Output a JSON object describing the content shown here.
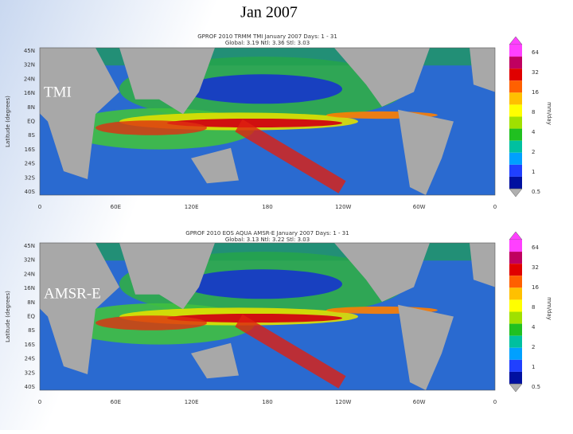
{
  "title": "Jan 2007",
  "panels": [
    {
      "label": "TMI",
      "header": [
        "GPROF 2010   TRMM   TMI   January 2007   Days: 1 - 31",
        "Global: 3.19   Ntl: 3.36   Stl: 3.03"
      ],
      "y_axis_label": "Latitude (degrees)",
      "yticks": [
        "45N",
        "32N",
        "24N",
        "16N",
        "8N",
        "EQ",
        "8S",
        "16S",
        "24S",
        "32S",
        "40S"
      ],
      "xticks": [
        "0",
        "60E",
        "120E",
        "180",
        "120W",
        "60W",
        "0"
      ],
      "colorbar_label": "mm/day",
      "colorbar_ticks": [
        "64",
        "32",
        "16",
        "8",
        "4",
        "2",
        "1",
        "0.5"
      ]
    },
    {
      "label": "AMSR-E",
      "header": [
        "GPROF 2010   EOS AQUA   AMSR-E   January 2007   Days: 1 - 31",
        "Global: 3.13   Ntl: 3.22   Stl: 3.03"
      ],
      "y_axis_label": "Latitude (degrees)",
      "yticks": [
        "45N",
        "32N",
        "24N",
        "16N",
        "8N",
        "EQ",
        "8S",
        "16S",
        "24S",
        "32S",
        "40S"
      ],
      "xticks": [
        "0",
        "60E",
        "120E",
        "180",
        "120W",
        "60W",
        "0"
      ],
      "colorbar_label": "mm/day",
      "colorbar_ticks": [
        "64",
        "32",
        "16",
        "8",
        "4",
        "2",
        "1",
        "0.5"
      ]
    }
  ]
}
